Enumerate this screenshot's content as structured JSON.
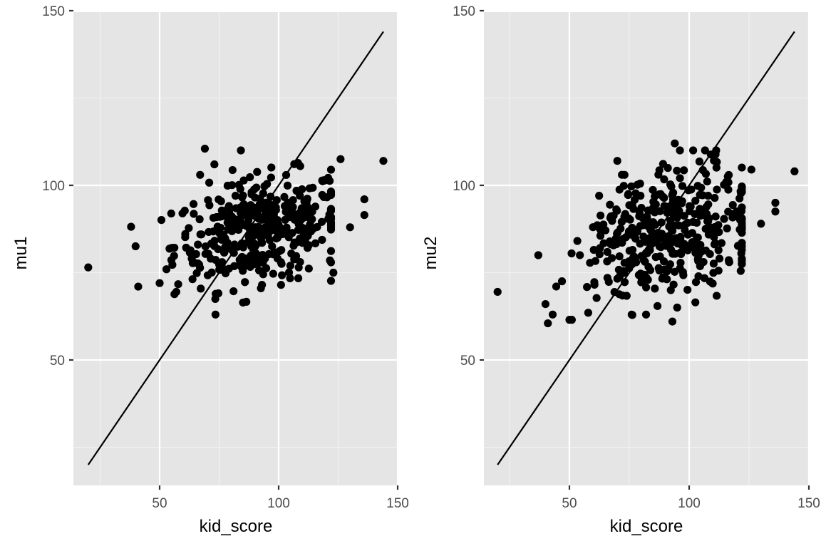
{
  "chart_data": [
    {
      "type": "scatter",
      "panel": "left",
      "title": "",
      "xlabel": "kid_score",
      "ylabel": "mu1",
      "xlim": [
        14,
        150
      ],
      "ylim": [
        14,
        150
      ],
      "x_ticks": [
        50,
        100,
        150
      ],
      "x_tick_labels": [
        "50",
        "100",
        "150"
      ],
      "y_ticks": [
        50,
        100,
        150
      ],
      "y_tick_labels": [
        "50",
        "100",
        "150"
      ],
      "grid": true,
      "reference_line": {
        "type": "identity",
        "x": [
          20,
          144
        ],
        "y": [
          20,
          144
        ]
      },
      "outliers": [
        {
          "x": 20,
          "y": 76.5
        },
        {
          "x": 144,
          "y": 107
        },
        {
          "x": 136,
          "y": 96
        },
        {
          "x": 136,
          "y": 91.5
        },
        {
          "x": 130,
          "y": 88
        },
        {
          "x": 126,
          "y": 107.5
        },
        {
          "x": 123,
          "y": 75
        },
        {
          "x": 69,
          "y": 110.5
        },
        {
          "x": 67,
          "y": 103
        },
        {
          "x": 73,
          "y": 106
        },
        {
          "x": 101,
          "y": 71.5
        },
        {
          "x": 93,
          "y": 71.5
        },
        {
          "x": 41,
          "y": 71
        },
        {
          "x": 57,
          "y": 69.5
        },
        {
          "x": 50,
          "y": 72
        }
      ],
      "cluster": {
        "x_center": 92,
        "y_center": 87,
        "x_spread": 18,
        "y_spread": 7.5,
        "n": 400
      }
    },
    {
      "type": "scatter",
      "panel": "right",
      "title": "",
      "xlabel": "kid_score",
      "ylabel": "mu2",
      "xlim": [
        14,
        150
      ],
      "ylim": [
        14,
        150
      ],
      "x_ticks": [
        50,
        100,
        150
      ],
      "x_tick_labels": [
        "50",
        "100",
        "150"
      ],
      "y_ticks": [
        50,
        100,
        150
      ],
      "y_tick_labels": [
        "50",
        "100",
        "150"
      ],
      "grid": true,
      "reference_line": {
        "type": "identity",
        "x": [
          20,
          144
        ],
        "y": [
          20,
          144
        ]
      },
      "outliers": [
        {
          "x": 20,
          "y": 69.5
        },
        {
          "x": 144,
          "y": 104
        },
        {
          "x": 136,
          "y": 95
        },
        {
          "x": 136,
          "y": 92.5
        },
        {
          "x": 130,
          "y": 89
        },
        {
          "x": 126,
          "y": 104.5
        },
        {
          "x": 122,
          "y": 79
        },
        {
          "x": 94,
          "y": 112
        },
        {
          "x": 70,
          "y": 107
        },
        {
          "x": 73,
          "y": 103
        },
        {
          "x": 41,
          "y": 60.5
        },
        {
          "x": 43,
          "y": 63
        },
        {
          "x": 51,
          "y": 61.5
        },
        {
          "x": 50,
          "y": 61.5
        },
        {
          "x": 93,
          "y": 61
        },
        {
          "x": 95,
          "y": 65
        },
        {
          "x": 82,
          "y": 63
        },
        {
          "x": 76,
          "y": 63
        },
        {
          "x": 40,
          "y": 66
        },
        {
          "x": 37,
          "y": 80
        }
      ],
      "cluster": {
        "x_center": 92,
        "y_center": 86.5,
        "x_spread": 18,
        "y_spread": 9,
        "n": 400
      }
    }
  ],
  "style": {
    "panel_bg": "#e5e5e5",
    "grid_major": "#ffffff",
    "grid_minor": "#f2f2f2",
    "point_color": "#000000",
    "line_color": "#000000",
    "tick_label_color": "#4d4d4d"
  },
  "panels": [
    {
      "id": "left",
      "xlabel": "kid_score",
      "ylabel": "mu1",
      "x_tick_labels": [
        "50",
        "100",
        "150"
      ],
      "y_tick_labels": [
        "50",
        "100",
        "150"
      ]
    },
    {
      "id": "right",
      "xlabel": "kid_score",
      "ylabel": "mu2",
      "x_tick_labels": [
        "50",
        "100",
        "150"
      ],
      "y_tick_labels": [
        "50",
        "100",
        "150"
      ]
    }
  ]
}
